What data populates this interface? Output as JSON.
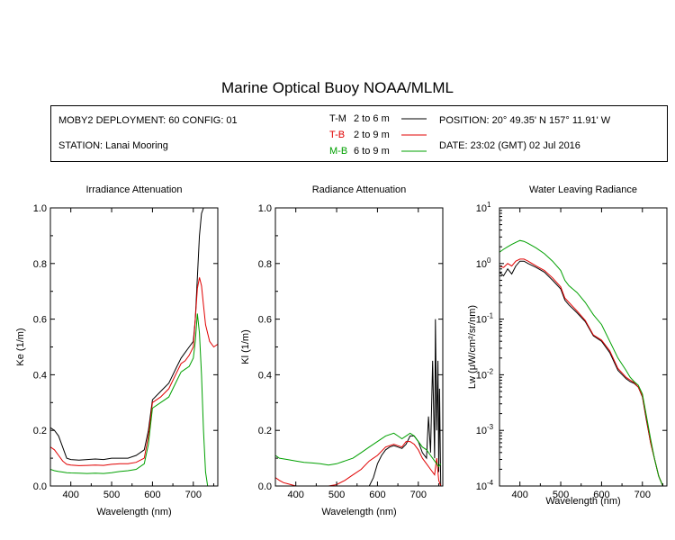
{
  "page": {
    "title": "Marine Optical Buoy NOAA/MLML"
  },
  "info": {
    "deployment": "MOBY2 DEPLOYMENT: 60 CONFIG: 01",
    "station": "STATION: Lanai Mooring",
    "position": "POSITION: 20° 49.35' N   157° 11.91' W",
    "date": "DATE: 23:02 (GMT) 02 Jul 2016",
    "legend": [
      {
        "code": "T-M",
        "range": "2 to 6  m",
        "color": "#000000"
      },
      {
        "code": "T-B",
        "range": "2 to 9  m",
        "color": "#e00000"
      },
      {
        "code": "M-B",
        "range": "6 to 9  m",
        "color": "#00a000"
      }
    ]
  },
  "colors": {
    "tm": "#000000",
    "tb": "#e00000",
    "mb": "#00a000"
  },
  "chart_data": [
    {
      "type": "line",
      "title": "Irradiance Attenuation",
      "xlabel": "Wavelength (nm)",
      "ylabel": "Ke  (1/m)",
      "xlim": [
        350,
        760
      ],
      "ylim": [
        0,
        1
      ],
      "xticks": [
        400,
        500,
        600,
        700
      ],
      "yticks": [
        0,
        0.2,
        0.4,
        0.6,
        0.8,
        1.0
      ],
      "ytick_labels": [
        "0.0",
        "0.2",
        "0.4",
        "0.6",
        "0.8",
        "1.0"
      ],
      "series": [
        {
          "name": "T-M",
          "color": "#000000",
          "x": [
            350,
            360,
            370,
            380,
            390,
            400,
            420,
            440,
            460,
            480,
            500,
            520,
            540,
            560,
            580,
            590,
            600,
            620,
            640,
            660,
            670,
            680,
            690,
            700,
            705,
            710,
            715,
            720,
            725
          ],
          "y": [
            0.21,
            0.2,
            0.18,
            0.14,
            0.1,
            0.095,
            0.093,
            0.095,
            0.097,
            0.095,
            0.1,
            0.1,
            0.1,
            0.11,
            0.13,
            0.2,
            0.31,
            0.34,
            0.37,
            0.43,
            0.46,
            0.48,
            0.5,
            0.52,
            0.6,
            0.75,
            0.9,
            0.98,
            1.0
          ]
        },
        {
          "name": "T-B",
          "color": "#e00000",
          "x": [
            350,
            360,
            370,
            380,
            390,
            400,
            420,
            440,
            460,
            480,
            500,
            520,
            540,
            560,
            580,
            590,
            600,
            620,
            640,
            660,
            670,
            680,
            690,
            700,
            705,
            710,
            715,
            720,
            725,
            730,
            740,
            750,
            760
          ],
          "y": [
            0.14,
            0.13,
            0.11,
            0.09,
            0.078,
            0.075,
            0.073,
            0.074,
            0.075,
            0.074,
            0.078,
            0.08,
            0.08,
            0.085,
            0.1,
            0.18,
            0.3,
            0.32,
            0.35,
            0.41,
            0.44,
            0.45,
            0.47,
            0.5,
            0.6,
            0.71,
            0.75,
            0.72,
            0.65,
            0.58,
            0.52,
            0.5,
            0.51
          ]
        },
        {
          "name": "M-B",
          "color": "#00a000",
          "x": [
            350,
            360,
            370,
            380,
            390,
            400,
            420,
            440,
            460,
            480,
            500,
            520,
            540,
            560,
            580,
            590,
            600,
            620,
            640,
            660,
            670,
            680,
            690,
            700,
            705,
            710,
            715,
            720,
            725,
            730,
            735
          ],
          "y": [
            0.06,
            0.055,
            0.052,
            0.05,
            0.048,
            0.047,
            0.046,
            0.045,
            0.046,
            0.045,
            0.048,
            0.052,
            0.055,
            0.06,
            0.08,
            0.15,
            0.28,
            0.3,
            0.32,
            0.38,
            0.41,
            0.42,
            0.43,
            0.46,
            0.52,
            0.62,
            0.55,
            0.4,
            0.2,
            0.05,
            0.0
          ]
        }
      ]
    },
    {
      "type": "line",
      "title": "Radiance Attenuation",
      "xlabel": "Wavelength (nm)",
      "ylabel": "Kl  (1/m)",
      "xlim": [
        350,
        760
      ],
      "ylim": [
        0,
        1
      ],
      "xticks": [
        400,
        500,
        600,
        700
      ],
      "yticks": [
        0,
        0.2,
        0.4,
        0.6,
        0.8,
        1.0
      ],
      "ytick_labels": [
        "0.0",
        "0.2",
        "0.4",
        "0.6",
        "0.8",
        "1.0"
      ],
      "series": [
        {
          "name": "T-M",
          "color": "#000000",
          "x": [
            580,
            590,
            600,
            610,
            620,
            630,
            640,
            650,
            660,
            670,
            680,
            690,
            700,
            710,
            720,
            725,
            730,
            735,
            740,
            742,
            745,
            748,
            750,
            752,
            755
          ],
          "y": [
            0.0,
            0.03,
            0.08,
            0.11,
            0.13,
            0.14,
            0.145,
            0.14,
            0.135,
            0.15,
            0.18,
            0.18,
            0.16,
            0.12,
            0.1,
            0.25,
            0.12,
            0.45,
            0.1,
            0.6,
            0.2,
            0.45,
            0.05,
            0.35,
            0.0
          ]
        },
        {
          "name": "T-B",
          "color": "#e00000",
          "x": [
            350,
            360,
            370,
            380,
            400,
            420,
            440,
            460,
            480,
            500,
            520,
            540,
            560,
            580,
            600,
            620,
            640,
            650,
            660,
            670,
            680,
            690,
            700,
            710,
            720,
            730,
            740,
            745,
            750,
            755
          ],
          "y": [
            0.03,
            0.02,
            0.012,
            0.008,
            0.0,
            0.0,
            0.0,
            0.0,
            0.0,
            0.005,
            0.02,
            0.04,
            0.06,
            0.09,
            0.11,
            0.14,
            0.15,
            0.145,
            0.14,
            0.16,
            0.16,
            0.15,
            0.13,
            0.1,
            0.08,
            0.06,
            0.04,
            0.1,
            0.02,
            0.0
          ]
        },
        {
          "name": "M-B",
          "color": "#00a000",
          "x": [
            350,
            360,
            380,
            400,
            420,
            440,
            460,
            480,
            500,
            520,
            540,
            560,
            580,
            600,
            620,
            640,
            650,
            660,
            670,
            680,
            690,
            700,
            710,
            720,
            730,
            740,
            750,
            755
          ],
          "y": [
            0.11,
            0.1,
            0.095,
            0.09,
            0.085,
            0.083,
            0.08,
            0.075,
            0.08,
            0.09,
            0.1,
            0.12,
            0.14,
            0.16,
            0.18,
            0.19,
            0.18,
            0.17,
            0.18,
            0.19,
            0.18,
            0.16,
            0.14,
            0.13,
            0.11,
            0.09,
            0.07,
            0.08
          ]
        }
      ]
    },
    {
      "type": "line",
      "title": "Water Leaving Radiance",
      "xlabel": "Wavelength (nm)",
      "ylabel": "Lw  (μW/cm²/sr/nm)",
      "xlim": [
        350,
        760
      ],
      "ylim": [
        0.0001,
        10
      ],
      "yscale": "log",
      "xticks": [
        400,
        500,
        600,
        700
      ],
      "yticks": [
        0.0001,
        0.001,
        0.01,
        0.1,
        1,
        10
      ],
      "ytick_labels": [
        {
          "base": "10",
          "exp": "-4"
        },
        {
          "base": "10",
          "exp": "-3"
        },
        {
          "base": "10",
          "exp": "-2"
        },
        {
          "base": "10",
          "exp": "-1"
        },
        {
          "base": "10",
          "exp": "0"
        },
        {
          "base": "10",
          "exp": "1"
        }
      ],
      "series": [
        {
          "name": "T-M",
          "color": "#000000",
          "x": [
            350,
            360,
            370,
            380,
            390,
            400,
            410,
            420,
            440,
            460,
            480,
            500,
            510,
            520,
            540,
            560,
            580,
            600,
            620,
            640,
            660,
            670,
            680,
            690,
            700,
            710,
            720,
            730,
            740,
            750
          ],
          "y": [
            0.7,
            0.6,
            0.8,
            0.65,
            0.9,
            1.1,
            1.1,
            1.0,
            0.85,
            0.7,
            0.5,
            0.35,
            0.22,
            0.18,
            0.13,
            0.09,
            0.05,
            0.04,
            0.025,
            0.012,
            0.0085,
            0.0075,
            0.007,
            0.006,
            0.004,
            0.0015,
            0.0006,
            0.0003,
            0.00015,
            0.0001
          ]
        },
        {
          "name": "T-B",
          "color": "#e00000",
          "x": [
            350,
            360,
            370,
            380,
            390,
            400,
            410,
            420,
            440,
            460,
            480,
            500,
            510,
            520,
            540,
            560,
            580,
            600,
            620,
            640,
            660,
            670,
            680,
            690,
            700,
            710,
            720,
            730,
            740,
            750
          ],
          "y": [
            0.9,
            0.85,
            1.0,
            0.9,
            1.1,
            1.2,
            1.2,
            1.1,
            0.9,
            0.75,
            0.55,
            0.38,
            0.24,
            0.2,
            0.14,
            0.095,
            0.052,
            0.042,
            0.027,
            0.013,
            0.009,
            0.008,
            0.0072,
            0.006,
            0.0041,
            0.0016,
            0.0006,
            0.0003,
            0.00015,
            0.0001
          ]
        },
        {
          "name": "M-B",
          "color": "#00a000",
          "x": [
            350,
            360,
            370,
            380,
            390,
            400,
            410,
            420,
            440,
            460,
            480,
            500,
            510,
            520,
            540,
            560,
            580,
            600,
            620,
            640,
            660,
            670,
            680,
            690,
            700,
            710,
            720,
            730,
            740,
            750
          ],
          "y": [
            1.6,
            1.8,
            2.0,
            2.2,
            2.4,
            2.6,
            2.5,
            2.3,
            1.9,
            1.5,
            1.1,
            0.75,
            0.5,
            0.4,
            0.3,
            0.2,
            0.12,
            0.08,
            0.04,
            0.02,
            0.012,
            0.009,
            0.0075,
            0.0065,
            0.0045,
            0.0018,
            0.0007,
            0.0003,
            0.00015,
            0.0001
          ]
        }
      ]
    }
  ]
}
